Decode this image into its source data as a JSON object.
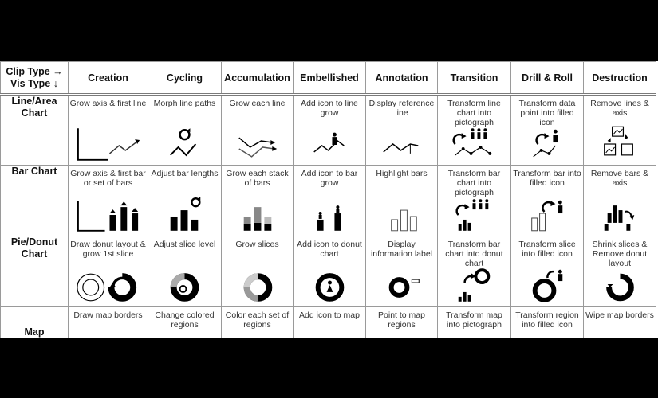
{
  "header": {
    "corner_top": "Clip Type →",
    "corner_bottom": "Vis Type ↓",
    "columns": [
      "Creation",
      "Cycling",
      "Accumulation",
      "Embellished",
      "Annotation",
      "Transition",
      "Drill & Roll",
      "Destruction"
    ]
  },
  "rows": [
    {
      "label": "Line/Area Chart",
      "cells": [
        {
          "caption": "Grow axis & first line",
          "icon": "line-axis-icon"
        },
        {
          "caption": "Morph line paths",
          "icon": "cycle-line-icon"
        },
        {
          "caption": "Grow each line",
          "icon": "multi-line-icon"
        },
        {
          "caption": "Add icon to line grow",
          "icon": "line-person-icon"
        },
        {
          "caption": "Display reference line",
          "icon": "line-reference-icon"
        },
        {
          "caption": "Transform line chart into pictograph",
          "icon": "line-pictograph-icon"
        },
        {
          "caption": "Transform data point into filled icon",
          "icon": "line-drill-icon"
        },
        {
          "caption": "Remove lines & axis",
          "icon": "line-remove-icon"
        }
      ]
    },
    {
      "label": "Bar Chart",
      "cells": [
        {
          "caption": "Grow axis & first bar or set of bars",
          "icon": "bar-axis-icon"
        },
        {
          "caption": "Adjust bar lengths",
          "icon": "bar-cycle-icon"
        },
        {
          "caption": "Grow each stack of bars",
          "icon": "stacked-bar-icon"
        },
        {
          "caption": "Add icon to bar grow",
          "icon": "bar-person-icon"
        },
        {
          "caption": "Highlight bars",
          "icon": "bar-highlight-icon"
        },
        {
          "caption": "Transform bar chart into pictograph",
          "icon": "bar-pictograph-icon"
        },
        {
          "caption": "Transform bar into filled icon",
          "icon": "bar-drill-icon"
        },
        {
          "caption": "Remove bars & axis",
          "icon": "bar-remove-icon"
        }
      ]
    },
    {
      "label": "Pie/Donut Chart",
      "cells": [
        {
          "caption": "Draw donut layout & grow 1st slice",
          "icon": "donut-grow-icon"
        },
        {
          "caption": "Adjust slice level",
          "icon": "donut-cycle-icon"
        },
        {
          "caption": "Grow slices",
          "icon": "donut-slices-icon"
        },
        {
          "caption": "Add icon to donut chart",
          "icon": "donut-person-icon"
        },
        {
          "caption": "Display information label",
          "icon": "donut-label-icon"
        },
        {
          "caption": "Transform bar chart into donut chart",
          "icon": "bar-to-donut-icon"
        },
        {
          "caption": "Transform slice into filled icon",
          "icon": "donut-drill-icon"
        },
        {
          "caption": "Shrink slices & Remove donut layout",
          "icon": "donut-remove-icon"
        }
      ]
    },
    {
      "label": "Map",
      "cells": [
        {
          "caption": "Draw map borders",
          "icon": "map-icon"
        },
        {
          "caption": "Change colored regions",
          "icon": "map-icon"
        },
        {
          "caption": "Color each set of regions",
          "icon": "map-icon"
        },
        {
          "caption": "Add icon to map",
          "icon": "map-icon"
        },
        {
          "caption": "Point to map regions",
          "icon": "map-icon"
        },
        {
          "caption": "Transform map into pictograph",
          "icon": "map-icon"
        },
        {
          "caption": "Transform region into filled icon",
          "icon": "map-icon"
        },
        {
          "caption": "Wipe map borders",
          "icon": "map-icon"
        }
      ]
    }
  ]
}
